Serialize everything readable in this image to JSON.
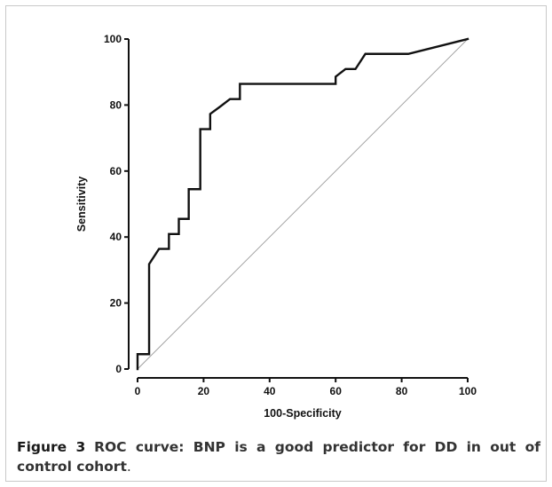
{
  "figure": {
    "label": "Figure 3",
    "text": "ROC curve: BNP is a good predictor for DD in out of control cohort",
    "period": "."
  },
  "chart_data": {
    "type": "line",
    "title": "",
    "xlabel": "100-Specificity",
    "ylabel": "Sensitivity",
    "xlim": [
      0,
      100
    ],
    "ylim": [
      0,
      100
    ],
    "xticks": [
      0,
      20,
      40,
      60,
      80,
      100
    ],
    "yticks": [
      0,
      20,
      40,
      60,
      80,
      100
    ],
    "grid": false,
    "series": [
      {
        "style": "step",
        "color": "#111111",
        "x": [
          0,
          0,
          3.5,
          3.5,
          6.5,
          6.5,
          9.5,
          9.5,
          12.5,
          12.5,
          15.5,
          15.5,
          19,
          19,
          22,
          22,
          25,
          28,
          31,
          31,
          60,
          60,
          63,
          66,
          69,
          82,
          100
        ],
        "y": [
          0,
          4.5,
          4.5,
          31.8,
          36.4,
          36.4,
          36.4,
          40.9,
          40.9,
          45.5,
          45.5,
          54.5,
          54.5,
          72.7,
          72.7,
          77.3,
          79.5,
          81.8,
          81.8,
          86.4,
          86.4,
          88.6,
          90.9,
          90.9,
          95.5,
          95.5,
          100
        ]
      },
      {
        "style": "reference-diagonal",
        "color": "#9a9a9a",
        "x": [
          0,
          100
        ],
        "y": [
          0,
          100
        ]
      }
    ]
  }
}
